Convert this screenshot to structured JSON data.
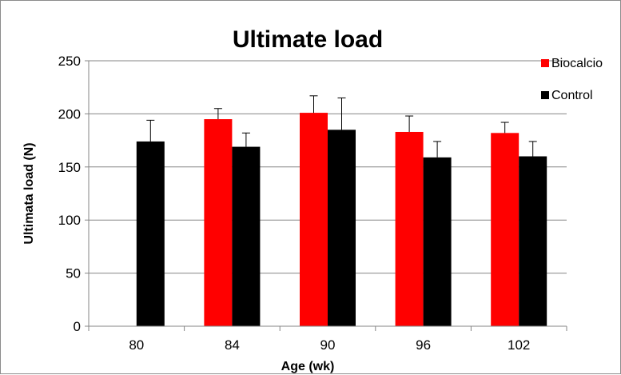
{
  "chart_data": {
    "type": "bar",
    "title": "Ultimate load",
    "xlabel": "Age (wk)",
    "ylabel": "Ultimata load (N)",
    "ylim": [
      0,
      250
    ],
    "yticks": [
      0,
      50,
      100,
      150,
      200,
      250
    ],
    "categories": [
      "80",
      "84",
      "90",
      "96",
      "102"
    ],
    "grid": true,
    "legend_position": "top-right",
    "series": [
      {
        "name": "Biocalcio",
        "color": "#ff0000",
        "values": [
          null,
          195,
          201,
          183,
          182
        ],
        "errors": [
          null,
          10,
          16,
          15,
          10
        ]
      },
      {
        "name": "Control",
        "color": "#000000",
        "values": [
          174,
          169,
          185,
          159,
          160
        ],
        "errors": [
          20,
          13,
          30,
          15,
          14
        ]
      }
    ]
  }
}
